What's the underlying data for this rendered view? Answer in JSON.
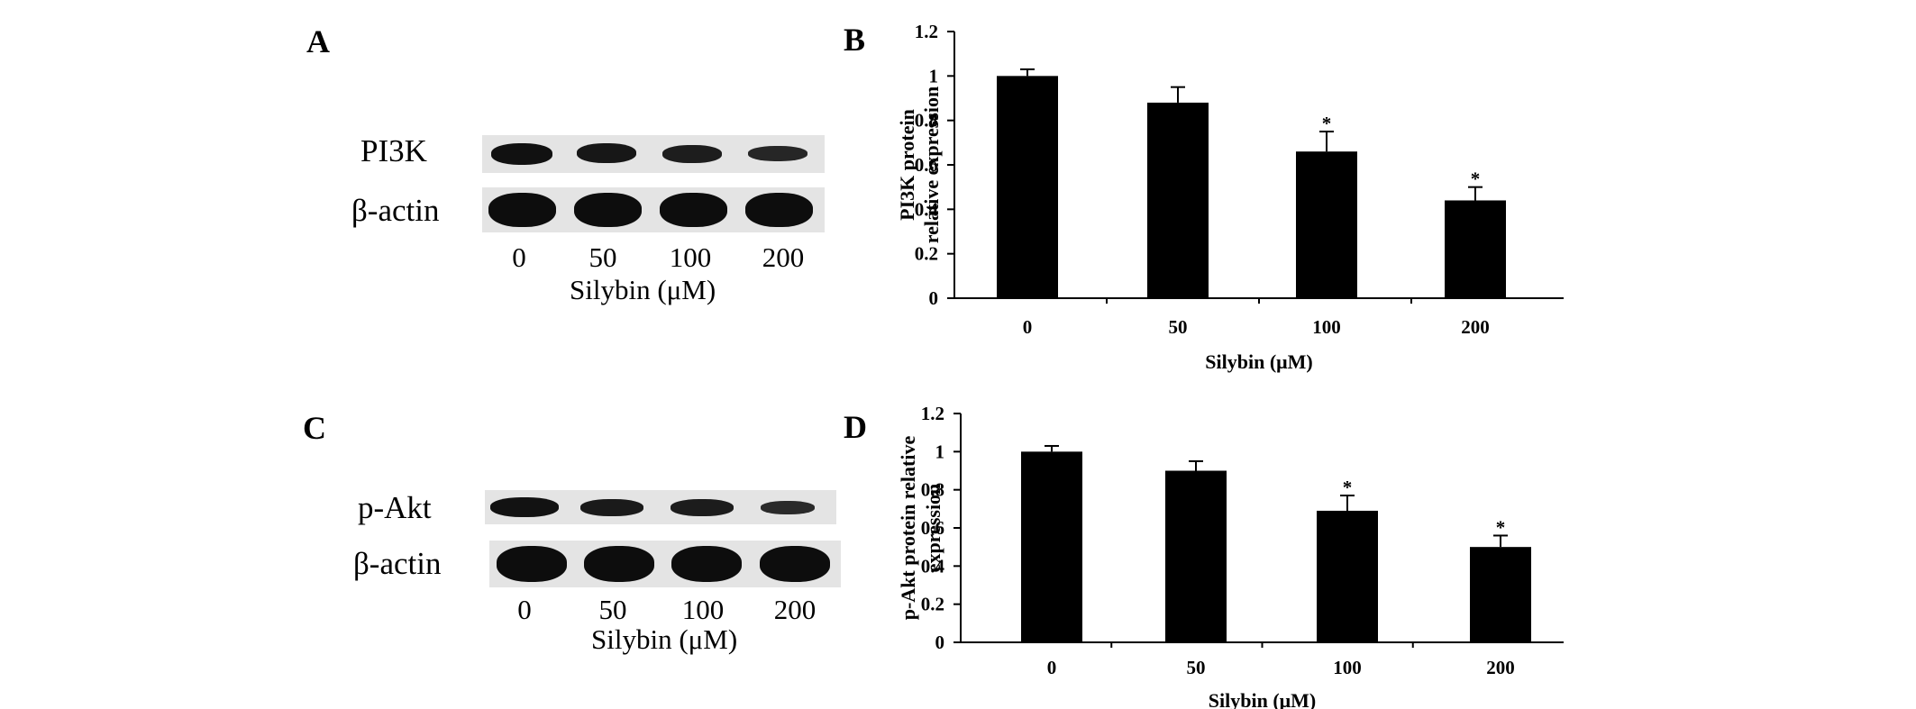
{
  "panels": {
    "A": {
      "letter": "A",
      "rows": [
        "PI3K",
        "β-actin"
      ],
      "lanes": [
        "0",
        "50",
        "100",
        "200"
      ],
      "xlabel": "Silybin (μM)"
    },
    "C": {
      "letter": "C",
      "rows": [
        "p-Akt",
        "β-actin"
      ],
      "lanes": [
        "0",
        "50",
        "100",
        "200"
      ],
      "xlabel": "Silybin (μM)"
    }
  },
  "chart_data": [
    {
      "panel": "B",
      "type": "bar",
      "categories": [
        "0",
        "50",
        "100",
        "200"
      ],
      "values": [
        1.0,
        0.88,
        0.66,
        0.44
      ],
      "errors": [
        0.03,
        0.07,
        0.09,
        0.06
      ],
      "significance": [
        "",
        "",
        "*",
        "*"
      ],
      "ylabel_lines": [
        "PI3K protein",
        "relative expression"
      ],
      "xlabel": "Silybin (μM)",
      "ylim": [
        0,
        1.2
      ],
      "yticks": [
        "0",
        "0.2",
        "0.4",
        "0.6",
        "0.8",
        "1",
        "1.2"
      ],
      "bar_color": "#000000"
    },
    {
      "panel": "D",
      "type": "bar",
      "categories": [
        "0",
        "50",
        "100",
        "200"
      ],
      "values": [
        1.0,
        0.9,
        0.69,
        0.5
      ],
      "errors": [
        0.03,
        0.05,
        0.08,
        0.06
      ],
      "significance": [
        "",
        "",
        "*",
        "*"
      ],
      "ylabel_lines": [
        "p-Akt protein relative",
        "expression"
      ],
      "xlabel": "Silybin (μM)",
      "ylim": [
        0,
        1.2
      ],
      "yticks": [
        "0",
        "0.2",
        "0.4",
        "0.6",
        "0.8",
        "1",
        "1.2"
      ],
      "bar_color": "#000000"
    }
  ],
  "chart_letters": [
    "B",
    "D"
  ]
}
